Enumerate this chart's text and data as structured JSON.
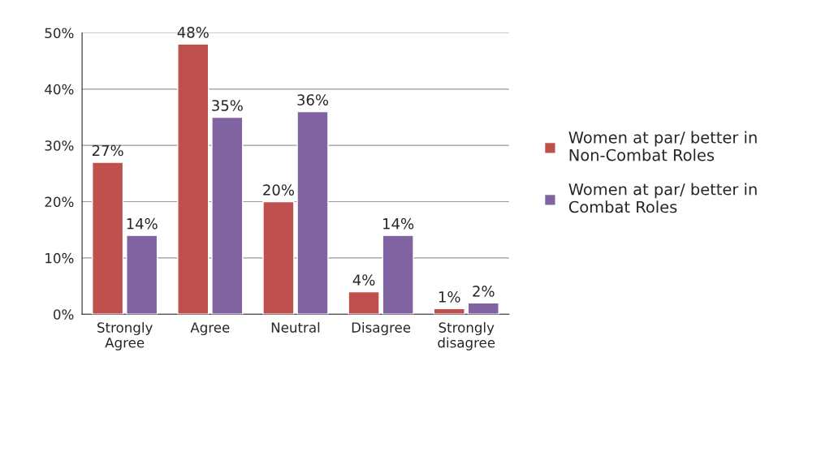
{
  "chart_data": {
    "type": "bar",
    "categories": [
      "Strongly\nAgree",
      "Agree",
      "Neutral",
      "Disagree",
      "Strongly\ndisagree"
    ],
    "series": [
      {
        "name": "Women at par/ better in\nNon-Combat Roles",
        "color": "#c0504d",
        "values": [
          27,
          48,
          20,
          4,
          1
        ],
        "value_labels": [
          "27%",
          "48%",
          "20%",
          "4%",
          "1%"
        ]
      },
      {
        "name": "Women at par/ better in\nCombat Roles",
        "color": "#8064a2",
        "values": [
          14,
          35,
          36,
          14,
          2
        ],
        "value_labels": [
          "14%",
          "35%",
          "36%",
          "14%",
          "2%"
        ]
      }
    ],
    "ylim": [
      0,
      50
    ],
    "yticks": [
      {
        "value": 0,
        "label": "0%"
      },
      {
        "value": 10,
        "label": "10%"
      },
      {
        "value": 20,
        "label": "20%"
      },
      {
        "value": 30,
        "label": "30%"
      },
      {
        "value": 40,
        "label": "40%"
      },
      {
        "value": 50,
        "label": "50%"
      }
    ],
    "grid": "y",
    "legend": "right"
  }
}
